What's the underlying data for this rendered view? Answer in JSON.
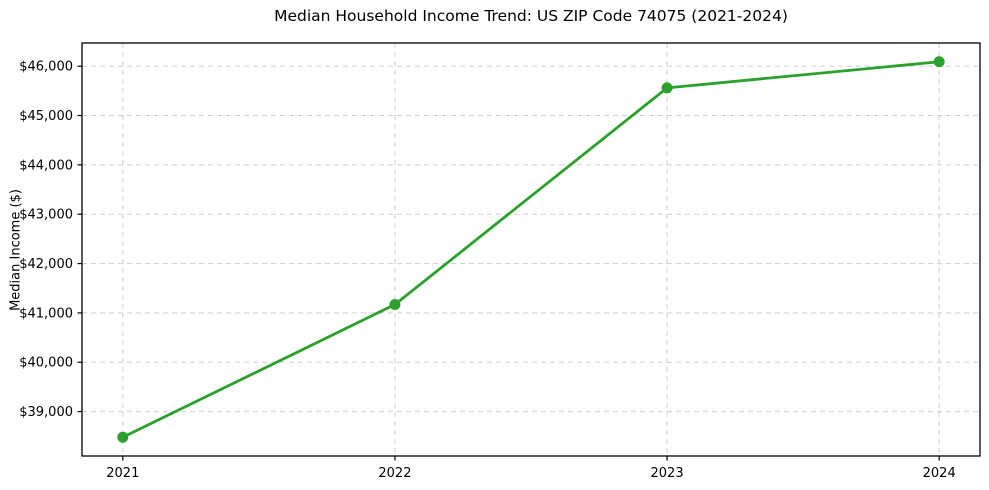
{
  "chart_data": {
    "type": "line",
    "title": "Median Household Income Trend: US ZIP Code 74075 (2021-2024)",
    "xlabel": "",
    "ylabel": "Median Income ($)",
    "categories": [
      "2021",
      "2022",
      "2023",
      "2024"
    ],
    "values": [
      38480,
      41170,
      45560,
      46090
    ],
    "xlim": [
      2020.85,
      2024.15
    ],
    "ylim": [
      38100,
      46470
    ],
    "yticks": [
      39000,
      40000,
      41000,
      42000,
      43000,
      44000,
      45000,
      46000
    ],
    "ytick_labels": [
      "$39,000",
      "$40,000",
      "$41,000",
      "$42,000",
      "$43,000",
      "$44,000",
      "$45,000",
      "$46,000"
    ],
    "grid": true,
    "grid_linestyle": "dashed",
    "legend_position": "none",
    "line_color": "#2ca02c",
    "marker": "circle",
    "grid_color": "#cdcdcd",
    "spine_color": "#000000",
    "tick_label_color": "#000000",
    "background_color": "#ffffff"
  }
}
